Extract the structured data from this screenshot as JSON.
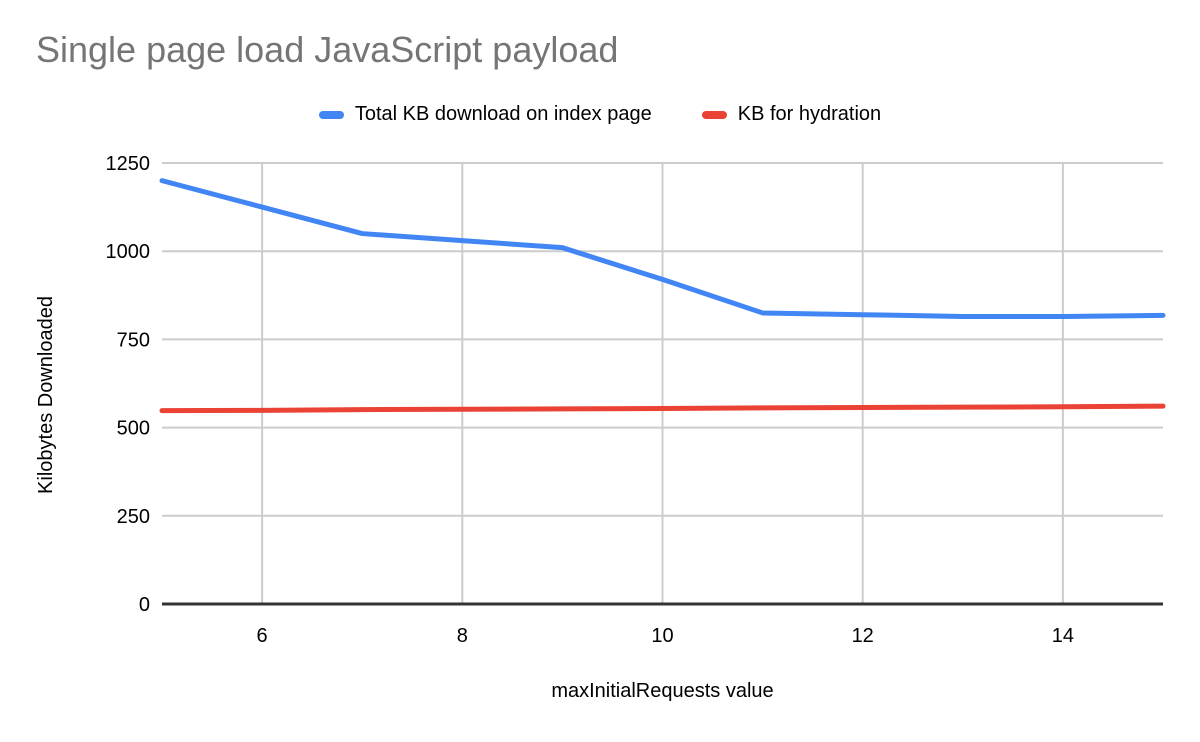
{
  "chart_data": {
    "type": "line",
    "title": "Single page load JavaScript payload",
    "xlabel": "maxInitialRequests value",
    "ylabel": "Kilobytes Downloaded",
    "x": [
      5,
      6,
      7,
      8,
      9,
      10,
      11,
      12,
      13,
      14,
      15
    ],
    "series": [
      {
        "name": "Total KB download on index page",
        "color": "#4285f4",
        "values": [
          1200,
          1125,
          1050,
          1030,
          1010,
          920,
          825,
          820,
          815,
          815,
          818
        ]
      },
      {
        "name": "KB for hydration",
        "color": "#ea4335",
        "values": [
          548,
          549,
          551,
          552,
          553,
          554,
          556,
          557,
          558,
          559,
          561
        ]
      }
    ],
    "xticks": [
      6,
      8,
      10,
      12,
      14
    ],
    "yticks": [
      0,
      250,
      500,
      750,
      1000,
      1250
    ],
    "xlim": [
      5,
      15
    ],
    "ylim": [
      0,
      1250
    ],
    "grid": true,
    "legend_position": "top",
    "colors": {
      "title": "#757575",
      "tick_label": "#000000",
      "axis_title": "#000000",
      "gridline": "#cccccc",
      "axis_line": "#333333",
      "background": "#ffffff"
    }
  }
}
